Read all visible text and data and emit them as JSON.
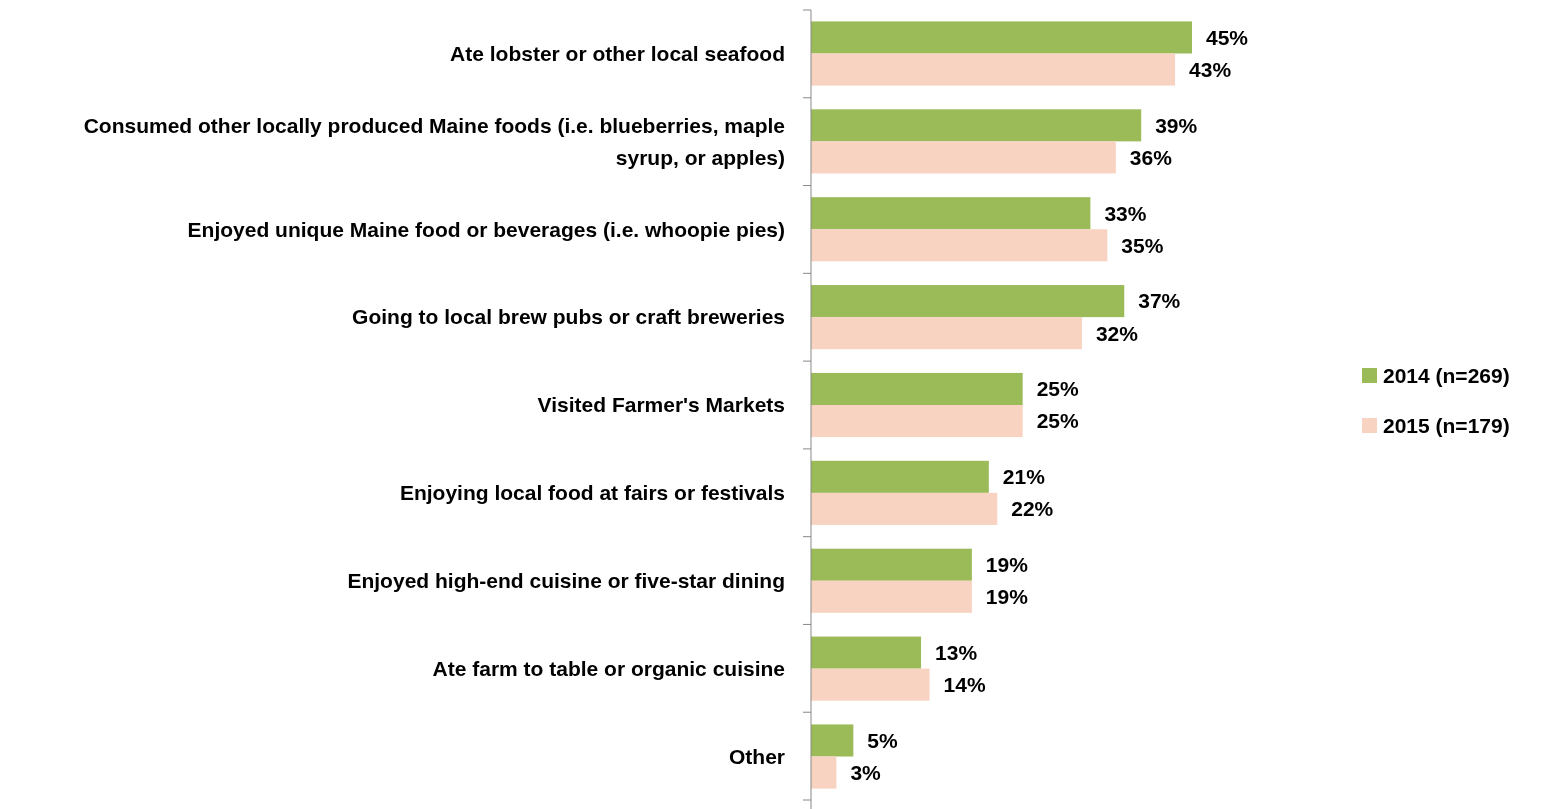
{
  "chart_data": {
    "type": "bar",
    "orientation": "horizontal",
    "categories": [
      "Ate lobster or other local seafood",
      "Consumed other locally produced Maine foods (i.e. blueberries, maple syrup, or apples)",
      "Enjoyed unique Maine food or beverages (i.e. whoopie pies)",
      "Going to local brew pubs or craft breweries",
      "Visited Farmer's Markets",
      "Enjoying local food at fairs or festivals",
      "Enjoyed high-end cuisine or five-star dining",
      "Ate farm to table or organic cuisine",
      "Other"
    ],
    "series": [
      {
        "name": "2014 (n=269)",
        "color": "#9bbb59",
        "values": [
          45,
          39,
          33,
          37,
          25,
          21,
          19,
          13,
          5
        ],
        "value_labels": [
          "45%",
          "39%",
          "33%",
          "37%",
          "25%",
          "21%",
          "19%",
          "13%",
          "5%"
        ]
      },
      {
        "name": "2015 (n=179)",
        "color": "#f9d3c1",
        "values": [
          43,
          36,
          35,
          32,
          25,
          22,
          19,
          14,
          3
        ],
        "value_labels": [
          "43%",
          "36%",
          "35%",
          "32%",
          "25%",
          "22%",
          "19%",
          "14%",
          "3%"
        ]
      }
    ],
    "legend": "right"
  }
}
